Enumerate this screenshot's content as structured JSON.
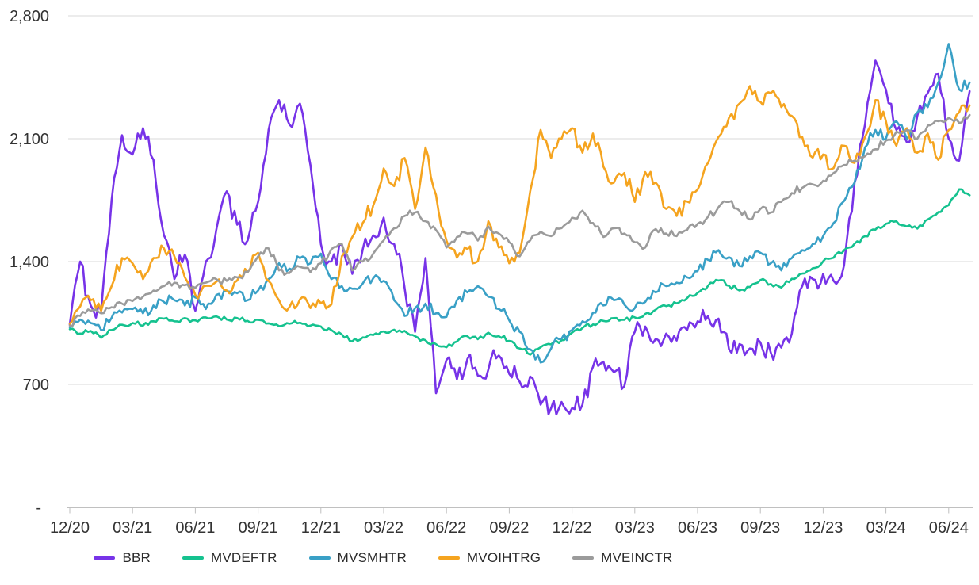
{
  "chart_data": {
    "type": "line",
    "title": "",
    "xlabel": "",
    "ylabel": "",
    "grid": "horizontal",
    "legend_position": "bottom",
    "ylim": [
      0,
      2800
    ],
    "y_ticks": [
      {
        "value": 2800,
        "label": "2,800"
      },
      {
        "value": 2100,
        "label": "2,100"
      },
      {
        "value": 1400,
        "label": "1,400"
      },
      {
        "value": 700,
        "label": "700"
      },
      {
        "value": 0,
        "label": "-"
      }
    ],
    "x_tick_labels": [
      "12/20",
      "03/21",
      "06/21",
      "09/21",
      "12/21",
      "03/22",
      "06/22",
      "09/22",
      "12/22",
      "03/23",
      "06/23",
      "09/23",
      "12/23",
      "03/24",
      "06/24"
    ],
    "x_tick_interval_months": 3,
    "x_step_months": 0.5,
    "x_range_months": [
      0,
      43
    ],
    "series": [
      {
        "name": "BBR",
        "color": "#7733e8",
        "roughness": 70,
        "values": [
          1040,
          1400,
          1150,
          1120,
          1750,
          2120,
          2010,
          2160,
          1980,
          1550,
          1300,
          1440,
          1120,
          1400,
          1580,
          1800,
          1610,
          1520,
          1740,
          2150,
          2320,
          2180,
          2300,
          1950,
          1500,
          1400,
          1500,
          1330,
          1470,
          1550,
          1650,
          1500,
          1250,
          1000,
          1420,
          650,
          840,
          730,
          845,
          750,
          785,
          865,
          760,
          715,
          745,
          585,
          565,
          600,
          565,
          585,
          800,
          830,
          770,
          690,
          1000,
          1030,
          960,
          990,
          950,
          1010,
          1060,
          1090,
          1075,
          900,
          930,
          905,
          940,
          880,
          910,
          990,
          1260,
          1300,
          1330,
          1290,
          1380,
          1850,
          2180,
          2545,
          2380,
          2150,
          2080,
          2230,
          2360,
          2470,
          2100,
          1975,
          2370
        ]
      },
      {
        "name": "MVDEFTR",
        "color": "#15c28f",
        "roughness": 16,
        "values": [
          1015,
          990,
          1005,
          965,
          1010,
          1040,
          1050,
          1035,
          1060,
          1075,
          1060,
          1078,
          1065,
          1082,
          1088,
          1070,
          1078,
          1062,
          1068,
          1048,
          1032,
          1046,
          1052,
          1035,
          1030,
          1010,
          985,
          945,
          968,
          982,
          1002,
          1012,
          1005,
          975,
          952,
          930,
          912,
          945,
          975,
          958,
          995,
          975,
          948,
          905,
          870,
          912,
          928,
          952,
          995,
          1022,
          1042,
          1062,
          1078,
          1068,
          1082,
          1102,
          1126,
          1146,
          1162,
          1192,
          1222,
          1262,
          1292,
          1262,
          1235,
          1255,
          1295,
          1272,
          1252,
          1302,
          1332,
          1362,
          1402,
          1422,
          1465,
          1502,
          1545,
          1582,
          1615,
          1630,
          1600,
          1588,
          1640,
          1682,
          1722,
          1812,
          1778
        ]
      },
      {
        "name": "MVSMHTR",
        "color": "#39a0c6",
        "roughness": 35,
        "values": [
          1025,
          1070,
          1050,
          1010,
          1080,
          1110,
          1130,
          1105,
          1150,
          1170,
          1180,
          1150,
          1195,
          1130,
          1210,
          1230,
          1220,
          1180,
          1235,
          1300,
          1390,
          1360,
          1420,
          1390,
          1445,
          1300,
          1260,
          1245,
          1275,
          1305,
          1290,
          1180,
          1090,
          1135,
          1160,
          1105,
          1085,
          1180,
          1225,
          1260,
          1200,
          1130,
          1065,
          1000,
          900,
          825,
          905,
          960,
          1010,
          1060,
          1110,
          1150,
          1180,
          1155,
          1135,
          1170,
          1225,
          1260,
          1280,
          1310,
          1345,
          1410,
          1465,
          1425,
          1375,
          1430,
          1450,
          1390,
          1350,
          1420,
          1465,
          1500,
          1545,
          1620,
          1745,
          1850,
          2050,
          2150,
          2100,
          2200,
          2100,
          2250,
          2280,
          2420,
          2640,
          2380,
          2420
        ]
      },
      {
        "name": "MVOIHTRG",
        "color": "#f5a41f",
        "roughness": 50,
        "values": [
          1045,
          1145,
          1180,
          1120,
          1260,
          1420,
          1390,
          1300,
          1420,
          1475,
          1430,
          1310,
          1210,
          1262,
          1285,
          1235,
          1292,
          1340,
          1450,
          1290,
          1180,
          1142,
          1185,
          1135,
          1162,
          1155,
          1430,
          1540,
          1620,
          1720,
          1930,
          1830,
          1990,
          1700,
          2050,
          1780,
          1520,
          1422,
          1470,
          1402,
          1630,
          1480,
          1390,
          1452,
          1800,
          2150,
          1990,
          2100,
          2160,
          2020,
          2130,
          1940,
          1850,
          1905,
          1740,
          1910,
          1850,
          1700,
          1660,
          1742,
          1810,
          1962,
          2110,
          2220,
          2300,
          2400,
          2310,
          2360,
          2280,
          2230,
          2110,
          1992,
          2010,
          1932,
          2060,
          1962,
          2110,
          2320,
          2200,
          2060,
          2160,
          2020,
          2130,
          1980,
          2150,
          2250,
          2290
        ]
      },
      {
        "name": "MVEINCTR",
        "color": "#9b9b9b",
        "roughness": 25,
        "values": [
          1035,
          1090,
          1120,
          1105,
          1140,
          1160,
          1175,
          1200,
          1235,
          1260,
          1280,
          1265,
          1250,
          1280,
          1300,
          1290,
          1310,
          1340,
          1430,
          1475,
          1350,
          1335,
          1370,
          1340,
          1390,
          1470,
          1500,
          1350,
          1400,
          1445,
          1520,
          1590,
          1660,
          1680,
          1630,
          1580,
          1480,
          1540,
          1560,
          1520,
          1600,
          1560,
          1510,
          1430,
          1520,
          1570,
          1545,
          1590,
          1650,
          1690,
          1620,
          1540,
          1590,
          1560,
          1510,
          1480,
          1585,
          1560,
          1545,
          1580,
          1615,
          1655,
          1710,
          1740,
          1690,
          1640,
          1700,
          1680,
          1740,
          1790,
          1820,
          1840,
          1860,
          1905,
          1950,
          1975,
          2000,
          2040,
          2090,
          2140,
          2150,
          2100,
          2175,
          2200,
          2220,
          2190,
          2235
        ]
      }
    ]
  },
  "colors": {
    "grid": "#d9d9d9",
    "axis_line": "#c0c0c0",
    "tick": "#bfbfbf",
    "axis_text": "#333333"
  }
}
